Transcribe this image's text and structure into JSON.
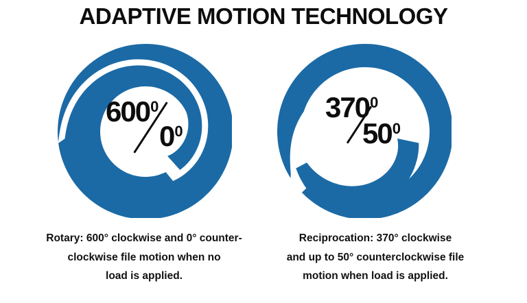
{
  "title": "ADAPTIVE MOTION TECHNOLOGY",
  "colors": {
    "accent_blue": "#1B6AA5",
    "text_black": "#111111",
    "background": "#FFFFFF"
  },
  "dials": [
    {
      "name": "rotary",
      "top_value": "600",
      "top_degree": "0",
      "bottom_value": "0",
      "bottom_degree": "0",
      "caption_lines": [
        "Rotary: 600° clockwise and 0° counter-",
        "clockwise file motion when no",
        "load is applied."
      ]
    },
    {
      "name": "reciprocation",
      "top_value": "370",
      "top_degree": "0",
      "bottom_value": "50",
      "bottom_degree": "0",
      "caption_lines": [
        "Reciprocation: 370° clockwise",
        "and up to 50° counterclockwise file",
        "motion when load is applied."
      ]
    }
  ]
}
